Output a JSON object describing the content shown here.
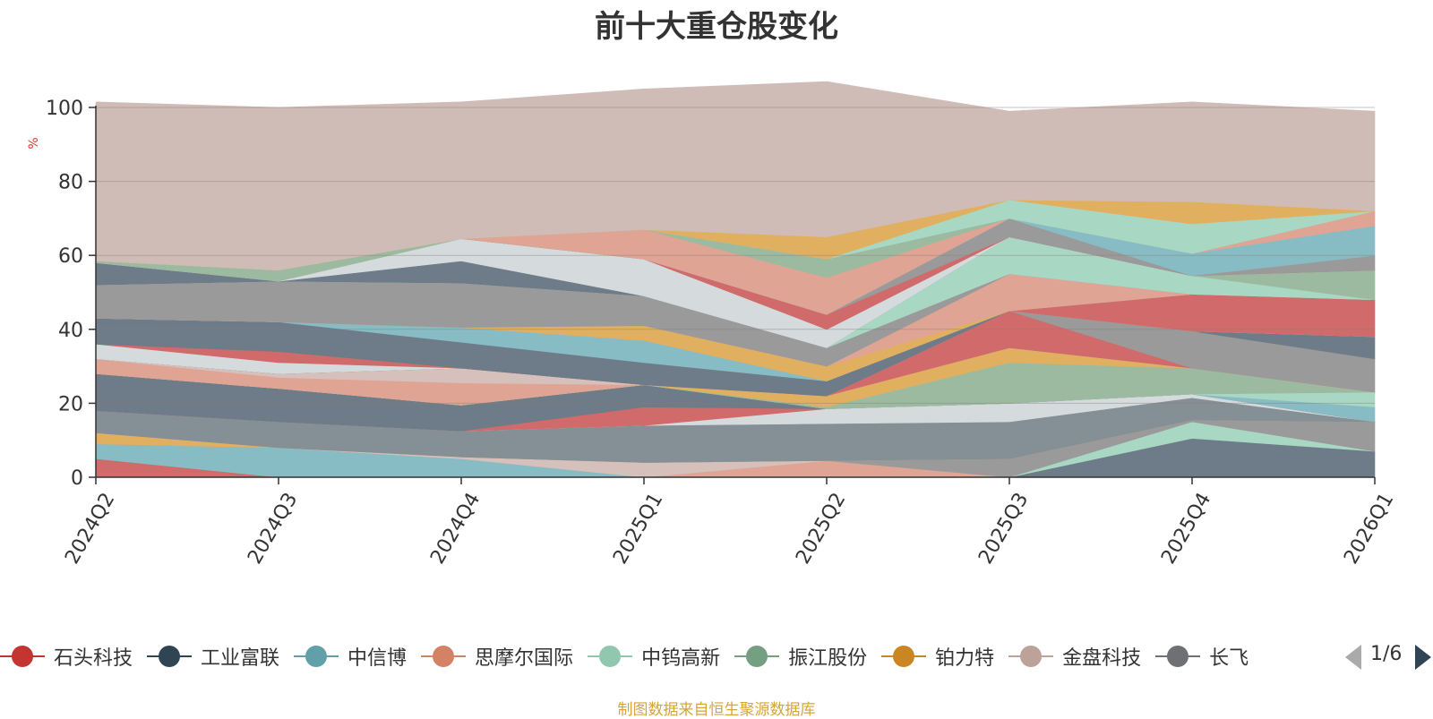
{
  "chart_data": {
    "type": "area",
    "title": "前十大重仓股变化",
    "ylabel": "%",
    "xlabel": "",
    "ylim": [
      0,
      100
    ],
    "yticks": [
      0,
      20,
      40,
      60,
      80,
      100
    ],
    "categories": [
      "2024Q2",
      "2024Q3",
      "2024Q4",
      "2025Q1",
      "2025Q2",
      "2025Q3",
      "2025Q4",
      "2026Q1"
    ],
    "stacked": true,
    "bands": [
      {
        "color": "#d16a6b",
        "values": [
          5,
          0,
          0,
          0,
          0,
          0,
          0,
          0
        ]
      },
      {
        "color": "#88bcc4",
        "values": [
          4,
          8,
          5,
          0,
          0,
          0,
          0,
          0
        ]
      },
      {
        "color": "#e0a494",
        "values": [
          0,
          0,
          0,
          0,
          4.5,
          0,
          0,
          0
        ]
      },
      {
        "color": "#d5c0bc",
        "values": [
          0,
          0,
          0.5,
          4,
          0,
          0,
          0,
          0
        ]
      },
      {
        "color": "#6e7b88",
        "values": [
          0,
          0,
          0,
          0,
          0,
          0,
          10.5,
          7
        ]
      },
      {
        "color": "#a8d8c4",
        "values": [
          0,
          0,
          0,
          0,
          0,
          0,
          4.5,
          0
        ]
      },
      {
        "color": "#9a9a9a",
        "values": [
          0,
          0,
          0,
          0,
          0,
          5,
          0.5,
          8
        ]
      },
      {
        "color": "#e0b060",
        "values": [
          3,
          0,
          0,
          0,
          0,
          0,
          0,
          0
        ]
      },
      {
        "color": "#848f96",
        "values": [
          6,
          7,
          7,
          10,
          10,
          10,
          6,
          0
        ]
      },
      {
        "color": "#d5dadc",
        "values": [
          0,
          0,
          0,
          0,
          4,
          5,
          1,
          0
        ]
      },
      {
        "color": "#d16a6b",
        "values": [
          0,
          0,
          0,
          5,
          0,
          0,
          0,
          0
        ]
      },
      {
        "color": "#6e7b88",
        "values": [
          10,
          9,
          7,
          6,
          0,
          0,
          0,
          0
        ]
      },
      {
        "color": "#88bcc4",
        "values": [
          0,
          0,
          0,
          0,
          0,
          0,
          0,
          4
        ]
      },
      {
        "color": "#a8d8c4",
        "values": [
          0,
          0,
          0,
          0,
          0,
          0,
          0,
          4
        ]
      },
      {
        "color": "#9cbaa0",
        "values": [
          0,
          0,
          0,
          0,
          0.5,
          11,
          7,
          0
        ]
      },
      {
        "color": "#e0b060",
        "values": [
          0,
          0,
          0,
          0,
          3,
          4,
          0,
          0
        ]
      },
      {
        "color": "#e0a494",
        "values": [
          4,
          3,
          6,
          0,
          0,
          0,
          0,
          0
        ]
      },
      {
        "color": "#d5c0bc",
        "values": [
          0,
          1,
          4,
          0,
          0,
          0,
          0,
          0
        ]
      },
      {
        "color": "#d16a6b",
        "values": [
          0,
          0,
          0,
          0,
          0,
          10,
          0,
          0
        ]
      },
      {
        "color": "#9a9a9a",
        "values": [
          0,
          0,
          0,
          0,
          0,
          0,
          10,
          9
        ]
      },
      {
        "color": "#6e7b88",
        "values": [
          0,
          0,
          0,
          0,
          0,
          0,
          0,
          6
        ]
      },
      {
        "color": "#d5dadc",
        "values": [
          4,
          3,
          0,
          0,
          0,
          0,
          0,
          0
        ]
      },
      {
        "color": "#d16a6b",
        "values": [
          0,
          3,
          0,
          0,
          0,
          0,
          10,
          10
        ]
      },
      {
        "color": "#6e7b88",
        "values": [
          7,
          8,
          7,
          6,
          4,
          0,
          0,
          0
        ]
      },
      {
        "color": "#88bcc4",
        "values": [
          0,
          0,
          4,
          6,
          0,
          0,
          0,
          0
        ]
      },
      {
        "color": "#e0b060",
        "values": [
          0,
          0,
          0,
          4,
          4,
          0,
          0,
          0
        ]
      },
      {
        "color": "#e0a494",
        "values": [
          0,
          0,
          0,
          0,
          0,
          10,
          0,
          0
        ]
      },
      {
        "color": "#9a9a9a",
        "values": [
          9,
          11,
          12,
          8,
          5,
          0,
          0,
          0
        ]
      },
      {
        "color": "#a8d8c4",
        "values": [
          0,
          0,
          0,
          0,
          0,
          10,
          5,
          0
        ]
      },
      {
        "color": "#9cbaa0",
        "values": [
          0,
          0,
          0,
          0,
          0,
          0,
          0,
          8
        ]
      },
      {
        "color": "#6e7b88",
        "values": [
          6,
          0,
          6,
          0,
          0,
          0,
          0,
          0
        ]
      },
      {
        "color": "#d5dadc",
        "values": [
          0,
          0,
          6,
          10,
          5,
          0,
          0,
          0
        ]
      },
      {
        "color": "#9cbaa0",
        "values": [
          0.5,
          3,
          0,
          0,
          0,
          0,
          0,
          0
        ]
      },
      {
        "color": "#d16a6b",
        "values": [
          0,
          0,
          0,
          0,
          4,
          0,
          0,
          0
        ]
      },
      {
        "color": "#9a9a9a",
        "values": [
          0,
          0,
          0,
          0,
          0,
          5,
          0,
          4
        ]
      },
      {
        "color": "#88bcc4",
        "values": [
          0,
          0,
          0,
          0,
          0,
          0,
          6,
          8
        ]
      },
      {
        "color": "#e0a494",
        "values": [
          0,
          0,
          0,
          8,
          10,
          0,
          0,
          4
        ]
      },
      {
        "color": "#9cbaa0",
        "values": [
          0,
          0,
          0,
          0,
          5,
          0,
          0,
          0
        ]
      },
      {
        "color": "#a8d8c4",
        "values": [
          0,
          0,
          0,
          0,
          0,
          5,
          8,
          0
        ]
      },
      {
        "color": "#e0b060",
        "values": [
          0,
          0,
          0,
          0,
          6,
          0,
          6,
          0
        ]
      },
      {
        "color": "#d0bcb6",
        "values": [
          43,
          44,
          37,
          38,
          42,
          24,
          27,
          27
        ]
      }
    ]
  },
  "legend": {
    "items": [
      {
        "label": "石头科技",
        "color": "#c23531"
      },
      {
        "label": "工业富联",
        "color": "#2f4554"
      },
      {
        "label": "中信博",
        "color": "#61a0a8"
      },
      {
        "label": "思摩尔国际",
        "color": "#d48265"
      },
      {
        "label": "中钨高新",
        "color": "#91c7ae"
      },
      {
        "label": "振江股份",
        "color": "#749f83"
      },
      {
        "label": "铂力特",
        "color": "#ca8622"
      },
      {
        "label": "金盘科技",
        "color": "#bda29a"
      },
      {
        "label": "长飞",
        "color": "#6e7074"
      }
    ],
    "page_text": "1/6"
  },
  "source_note": "制图数据来自恒生聚源数据库"
}
